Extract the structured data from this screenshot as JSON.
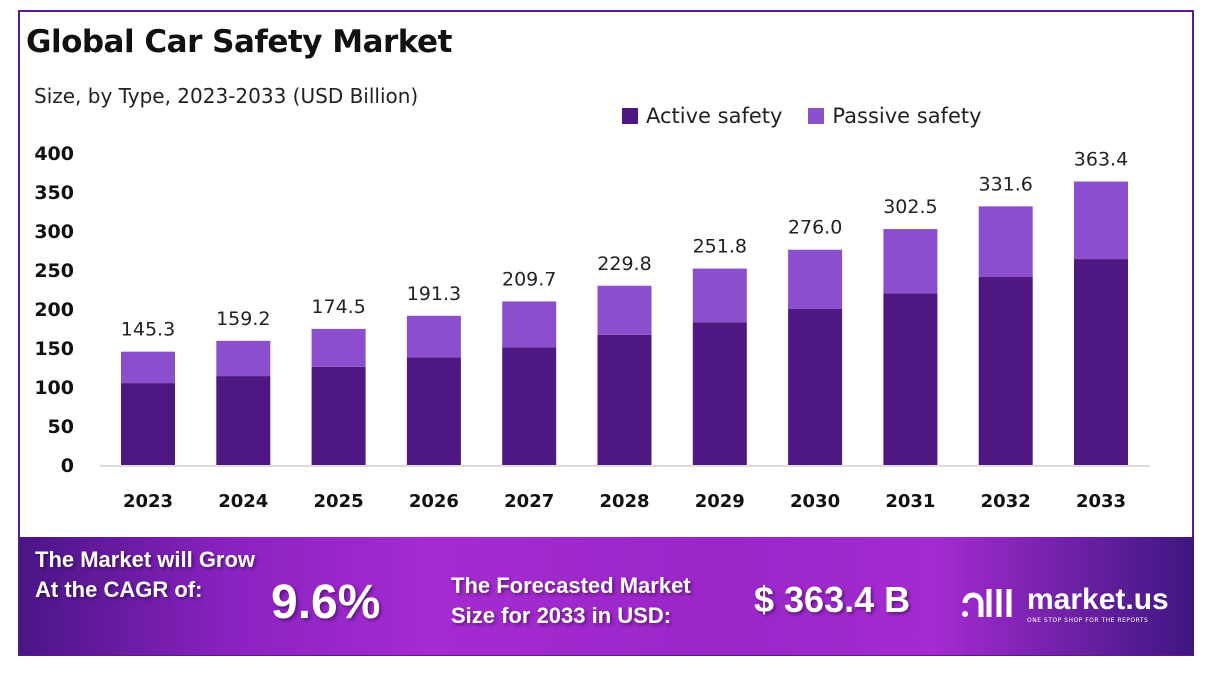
{
  "chart_data": {
    "type": "bar",
    "stacked": true,
    "title": "Global Car Safety Market",
    "subtitle": "Size, by Type, 2023-2033 (USD Billion)",
    "xlabel": "",
    "ylabel": "",
    "ylim": [
      0,
      400
    ],
    "yticks": [
      0,
      50,
      100,
      150,
      200,
      250,
      300,
      350,
      400
    ],
    "grid": false,
    "legend_position": "top-right",
    "categories": [
      "2023",
      "2024",
      "2025",
      "2026",
      "2027",
      "2028",
      "2029",
      "2030",
      "2031",
      "2032",
      "2033"
    ],
    "series": [
      {
        "name": "Active safety",
        "color": "#4f1781",
        "values": [
          105,
          114,
          126,
          138,
          151,
          167,
          183,
          200,
          220,
          241,
          264
        ]
      },
      {
        "name": "Passive safety",
        "color": "#8b4fce",
        "values": [
          40.3,
          45.2,
          48.5,
          53.3,
          58.7,
          62.8,
          68.8,
          76.0,
          82.5,
          90.6,
          99.4
        ]
      }
    ],
    "totals": [
      "145.3",
      "159.2",
      "174.5",
      "191.3",
      "209.7",
      "229.8",
      "251.8",
      "276.0",
      "302.5",
      "331.6",
      "363.4"
    ]
  },
  "footer": {
    "cagr_text_line1": "The Market will Grow",
    "cagr_text_line2": "At the CAGR of:",
    "cagr_value": "9.6%",
    "forecast_text_line1": "The Forecasted Market",
    "forecast_text_line2": "Size for 2033 in USD:",
    "forecast_value": "$ 363.4 B",
    "logo_name": "market.us",
    "logo_tagline": "ONE STOP SHOP FOR THE REPORTS"
  }
}
